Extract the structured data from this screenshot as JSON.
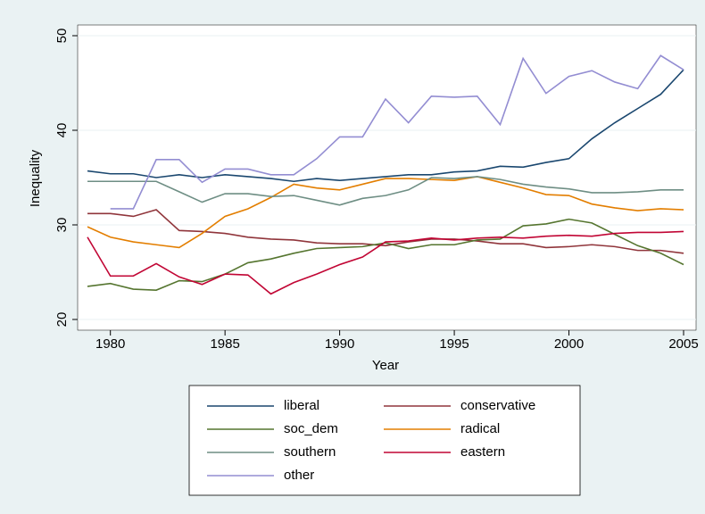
{
  "chart_data": {
    "type": "line",
    "y_label": "Inequality",
    "x_label": "Year",
    "x": [
      1979,
      1980,
      1981,
      1982,
      1983,
      1984,
      1985,
      1986,
      1987,
      1988,
      1989,
      1990,
      1991,
      1992,
      1993,
      1994,
      1995,
      1996,
      1997,
      1998,
      1999,
      2000,
      2001,
      2002,
      2003,
      2004,
      2005
    ],
    "xlim": [
      1979,
      2005
    ],
    "xticks": [
      1980,
      1985,
      1990,
      1995,
      2000,
      2005
    ],
    "ylim": [
      20,
      50
    ],
    "yticks": [
      20,
      30,
      40,
      50
    ],
    "grid": true,
    "series": [
      {
        "name": "liberal",
        "color": "#1a476f",
        "values": [
          35.7,
          35.4,
          35.4,
          35.0,
          35.3,
          35.0,
          35.3,
          35.1,
          34.9,
          34.6,
          34.9,
          34.7,
          34.9,
          35.1,
          35.3,
          35.3,
          35.6,
          35.7,
          36.2,
          36.1,
          36.6,
          37.0,
          39.1,
          40.8,
          42.3,
          43.8,
          46.4
        ]
      },
      {
        "name": "conservative",
        "color": "#90353b",
        "values": [
          31.2,
          31.2,
          30.9,
          31.6,
          29.4,
          29.3,
          29.1,
          28.7,
          28.5,
          28.4,
          28.1,
          28.0,
          28.0,
          27.8,
          28.2,
          28.5,
          28.5,
          28.3,
          28.0,
          28.0,
          27.6,
          27.7,
          27.9,
          27.7,
          27.3,
          27.3,
          27.0
        ]
      },
      {
        "name": "soc_dem",
        "color": "#55752f",
        "values": [
          23.5,
          23.8,
          23.2,
          23.1,
          24.1,
          24.0,
          24.8,
          26.0,
          26.4,
          27.0,
          27.5,
          27.6,
          27.7,
          28.1,
          27.5,
          27.9,
          27.9,
          28.4,
          28.5,
          29.9,
          30.1,
          30.6,
          30.2,
          29.0,
          27.8,
          27.0,
          25.8
        ]
      },
      {
        "name": "radical",
        "color": "#e37e00",
        "values": [
          29.8,
          28.7,
          28.2,
          27.9,
          27.6,
          29.1,
          30.9,
          31.7,
          32.9,
          34.3,
          33.9,
          33.7,
          34.3,
          34.9,
          34.9,
          34.8,
          34.7,
          35.1,
          34.5,
          33.9,
          33.2,
          33.1,
          32.2,
          31.8,
          31.5,
          31.7,
          31.6
        ]
      },
      {
        "name": "southern",
        "color": "#6e8e84",
        "values": [
          34.6,
          34.6,
          34.6,
          34.6,
          33.5,
          32.4,
          33.3,
          33.3,
          33.0,
          33.1,
          32.6,
          32.1,
          32.8,
          33.1,
          33.7,
          35.0,
          34.9,
          35.1,
          34.8,
          34.3,
          34.0,
          33.8,
          33.4,
          33.4,
          33.5,
          33.7,
          33.7
        ]
      },
      {
        "name": "eastern",
        "color": "#c10534",
        "values": [
          28.7,
          24.6,
          24.6,
          25.9,
          24.5,
          23.7,
          24.8,
          24.7,
          22.7,
          23.9,
          24.8,
          25.8,
          26.6,
          28.2,
          28.3,
          28.6,
          28.4,
          28.6,
          28.7,
          28.6,
          28.8,
          28.9,
          28.8,
          29.1,
          29.2,
          29.2,
          29.3
        ]
      },
      {
        "name": "other",
        "color": "#938dd2",
        "values": [
          null,
          31.7,
          31.7,
          36.9,
          36.9,
          34.5,
          35.9,
          35.9,
          35.3,
          35.3,
          37.0,
          39.3,
          39.3,
          43.3,
          40.8,
          43.6,
          43.5,
          43.6,
          40.6,
          47.6,
          43.9,
          45.7,
          46.3,
          45.1,
          44.4,
          47.9,
          46.4
        ]
      }
    ]
  }
}
